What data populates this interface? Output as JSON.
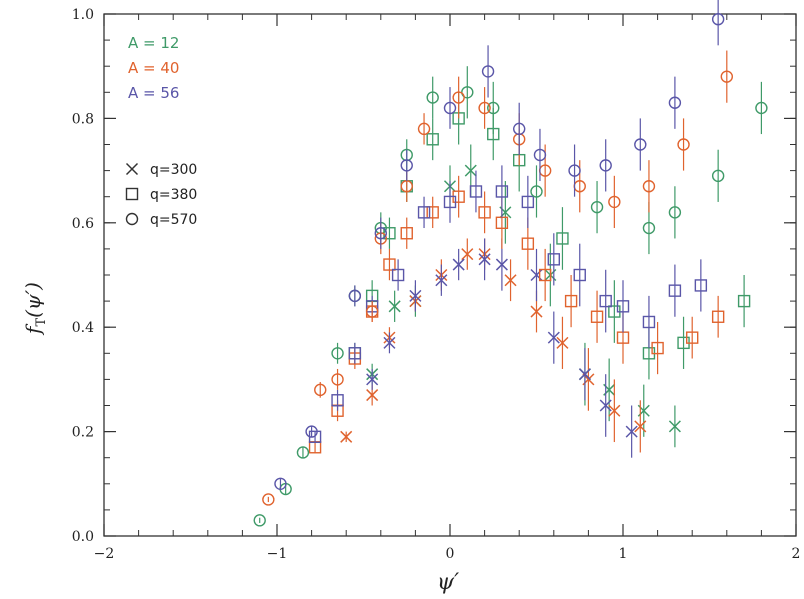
{
  "chart_data": {
    "type": "scatter",
    "title": "",
    "xlabel": "ψ′",
    "ylabel": "f_T(ψ′)",
    "ylabel_main": "f",
    "ylabel_sub": "T",
    "ylabel_tail": "(ψ′)",
    "xlim": [
      -2,
      2
    ],
    "ylim": [
      0.0,
      1.0
    ],
    "x_ticks": [
      {
        "value": -2,
        "label": "−2"
      },
      {
        "value": -1,
        "label": "−1"
      },
      {
        "value": 0,
        "label": "0"
      },
      {
        "value": 1,
        "label": "1"
      },
      {
        "value": 2,
        "label": "2"
      }
    ],
    "y_ticks": [
      {
        "value": 0.0,
        "label": "0.0"
      },
      {
        "value": 0.2,
        "label": "0.2"
      },
      {
        "value": 0.4,
        "label": "0.4"
      },
      {
        "value": 0.6,
        "label": "0.6"
      },
      {
        "value": 0.8,
        "label": "0.8"
      },
      {
        "value": 1.0,
        "label": "1.0"
      }
    ],
    "grid": false,
    "legend_position": "top-left",
    "nucleus_legend": [
      {
        "label": "A = 12",
        "color": "#3f9a68"
      },
      {
        "label": "A = 40",
        "color": "#e0632e"
      },
      {
        "label": "A = 56",
        "color": "#5a56a8"
      }
    ],
    "q_legend": [
      {
        "label": "q=300",
        "marker": "cross"
      },
      {
        "label": "q=380",
        "marker": "square"
      },
      {
        "label": "q=570",
        "marker": "circle"
      }
    ],
    "series": [
      {
        "name": "A = 12, q=300",
        "color": "#3f9a68",
        "marker": "cross",
        "points": [
          [
            -0.45,
            0.31,
            0.02
          ],
          [
            -0.32,
            0.44,
            0.03
          ],
          [
            -0.2,
            0.45,
            0.03
          ],
          [
            0.0,
            0.67,
            0.04
          ],
          [
            0.12,
            0.7,
            0.05
          ],
          [
            0.32,
            0.62,
            0.06
          ],
          [
            0.58,
            0.5,
            0.06
          ],
          [
            0.78,
            0.31,
            0.06
          ],
          [
            0.92,
            0.28,
            0.06
          ],
          [
            1.12,
            0.24,
            0.05
          ],
          [
            1.3,
            0.21,
            0.04
          ]
        ]
      },
      {
        "name": "A = 40, q=300",
        "color": "#e0632e",
        "marker": "cross",
        "points": [
          [
            -0.6,
            0.19,
            0.01
          ],
          [
            -0.45,
            0.27,
            0.02
          ],
          [
            -0.35,
            0.38,
            0.02
          ],
          [
            -0.2,
            0.45,
            0.02
          ],
          [
            -0.05,
            0.5,
            0.03
          ],
          [
            0.1,
            0.54,
            0.03
          ],
          [
            0.2,
            0.54,
            0.03
          ],
          [
            0.35,
            0.49,
            0.04
          ],
          [
            0.5,
            0.43,
            0.04
          ],
          [
            0.65,
            0.37,
            0.05
          ],
          [
            0.8,
            0.3,
            0.06
          ],
          [
            0.95,
            0.24,
            0.06
          ],
          [
            1.1,
            0.21,
            0.05
          ]
        ]
      },
      {
        "name": "A = 56, q=300",
        "color": "#5a56a8",
        "marker": "cross",
        "points": [
          [
            -0.45,
            0.3,
            0.02
          ],
          [
            -0.35,
            0.37,
            0.02
          ],
          [
            -0.2,
            0.46,
            0.03
          ],
          [
            -0.05,
            0.49,
            0.03
          ],
          [
            0.05,
            0.52,
            0.03
          ],
          [
            0.2,
            0.53,
            0.04
          ],
          [
            0.3,
            0.52,
            0.05
          ],
          [
            0.5,
            0.5,
            0.05
          ],
          [
            0.6,
            0.38,
            0.05
          ],
          [
            0.78,
            0.31,
            0.05
          ],
          [
            0.9,
            0.25,
            0.06
          ],
          [
            1.05,
            0.2,
            0.05
          ]
        ]
      },
      {
        "name": "A = 12, q=380",
        "color": "#3f9a68",
        "marker": "square",
        "points": [
          [
            -0.55,
            0.35,
            0.02
          ],
          [
            -0.45,
            0.46,
            0.03
          ],
          [
            -0.35,
            0.58,
            0.03
          ],
          [
            -0.25,
            0.67,
            0.03
          ],
          [
            -0.1,
            0.76,
            0.04
          ],
          [
            0.05,
            0.8,
            0.05
          ],
          [
            0.25,
            0.77,
            0.05
          ],
          [
            0.4,
            0.72,
            0.06
          ],
          [
            0.65,
            0.57,
            0.06
          ],
          [
            0.95,
            0.43,
            0.06
          ],
          [
            1.15,
            0.35,
            0.05
          ],
          [
            1.35,
            0.37,
            0.05
          ],
          [
            1.7,
            0.45,
            0.05
          ]
        ]
      },
      {
        "name": "A = 40, q=380",
        "color": "#e0632e",
        "marker": "square",
        "points": [
          [
            -0.78,
            0.17,
            0.01
          ],
          [
            -0.65,
            0.24,
            0.02
          ],
          [
            -0.55,
            0.34,
            0.02
          ],
          [
            -0.45,
            0.43,
            0.02
          ],
          [
            -0.35,
            0.52,
            0.03
          ],
          [
            -0.25,
            0.58,
            0.03
          ],
          [
            -0.1,
            0.62,
            0.03
          ],
          [
            0.05,
            0.65,
            0.04
          ],
          [
            0.2,
            0.62,
            0.04
          ],
          [
            0.3,
            0.6,
            0.05
          ],
          [
            0.45,
            0.56,
            0.05
          ],
          [
            0.55,
            0.5,
            0.05
          ],
          [
            0.7,
            0.45,
            0.05
          ],
          [
            0.85,
            0.42,
            0.05
          ],
          [
            1.0,
            0.38,
            0.05
          ],
          [
            1.2,
            0.36,
            0.05
          ],
          [
            1.4,
            0.38,
            0.04
          ],
          [
            1.55,
            0.42,
            0.04
          ]
        ]
      },
      {
        "name": "A = 56, q=380",
        "color": "#5a56a8",
        "marker": "square",
        "points": [
          [
            -0.78,
            0.19,
            0.01
          ],
          [
            -0.65,
            0.26,
            0.02
          ],
          [
            -0.55,
            0.35,
            0.02
          ],
          [
            -0.45,
            0.44,
            0.02
          ],
          [
            -0.3,
            0.5,
            0.03
          ],
          [
            -0.15,
            0.62,
            0.03
          ],
          [
            0.0,
            0.64,
            0.04
          ],
          [
            0.15,
            0.66,
            0.04
          ],
          [
            0.3,
            0.66,
            0.05
          ],
          [
            0.45,
            0.64,
            0.05
          ],
          [
            0.6,
            0.53,
            0.05
          ],
          [
            0.75,
            0.5,
            0.06
          ],
          [
            0.9,
            0.45,
            0.06
          ],
          [
            1.0,
            0.44,
            0.05
          ],
          [
            1.15,
            0.41,
            0.05
          ],
          [
            1.3,
            0.47,
            0.05
          ],
          [
            1.45,
            0.48,
            0.05
          ]
        ]
      },
      {
        "name": "A = 12, q=570",
        "color": "#3f9a68",
        "marker": "circle",
        "points": [
          [
            -1.1,
            0.03,
            0.005
          ],
          [
            -0.95,
            0.09,
            0.01
          ],
          [
            -0.85,
            0.16,
            0.01
          ],
          [
            -0.65,
            0.35,
            0.02
          ],
          [
            -0.55,
            0.46,
            0.02
          ],
          [
            -0.4,
            0.59,
            0.03
          ],
          [
            -0.25,
            0.73,
            0.03
          ],
          [
            -0.1,
            0.84,
            0.04
          ],
          [
            0.1,
            0.85,
            0.05
          ],
          [
            0.25,
            0.82,
            0.05
          ],
          [
            0.5,
            0.66,
            0.05
          ],
          [
            0.85,
            0.63,
            0.05
          ],
          [
            1.15,
            0.59,
            0.05
          ],
          [
            1.3,
            0.62,
            0.05
          ],
          [
            1.55,
            0.69,
            0.05
          ],
          [
            1.8,
            0.82,
            0.05
          ]
        ]
      },
      {
        "name": "A = 40, q=570",
        "color": "#e0632e",
        "marker": "circle",
        "points": [
          [
            -1.05,
            0.07,
            0.005
          ],
          [
            -0.75,
            0.28,
            0.015
          ],
          [
            -0.65,
            0.3,
            0.02
          ],
          [
            -0.45,
            0.43,
            0.02
          ],
          [
            -0.4,
            0.57,
            0.03
          ],
          [
            -0.25,
            0.67,
            0.03
          ],
          [
            -0.15,
            0.78,
            0.03
          ],
          [
            0.05,
            0.84,
            0.04
          ],
          [
            0.2,
            0.82,
            0.04
          ],
          [
            0.4,
            0.76,
            0.05
          ],
          [
            0.55,
            0.7,
            0.05
          ],
          [
            0.75,
            0.67,
            0.05
          ],
          [
            0.95,
            0.64,
            0.05
          ],
          [
            1.15,
            0.67,
            0.05
          ],
          [
            1.35,
            0.75,
            0.05
          ],
          [
            1.6,
            0.88,
            0.05
          ]
        ]
      },
      {
        "name": "A = 56, q=570",
        "color": "#5a56a8",
        "marker": "circle",
        "points": [
          [
            -0.98,
            0.1,
            0.01
          ],
          [
            -0.8,
            0.2,
            0.01
          ],
          [
            -0.55,
            0.46,
            0.02
          ],
          [
            -0.4,
            0.58,
            0.03
          ],
          [
            -0.25,
            0.71,
            0.03
          ],
          [
            0.0,
            0.82,
            0.04
          ],
          [
            0.22,
            0.89,
            0.05
          ],
          [
            0.4,
            0.78,
            0.05
          ],
          [
            0.52,
            0.73,
            0.05
          ],
          [
            0.72,
            0.7,
            0.05
          ],
          [
            0.9,
            0.71,
            0.05
          ],
          [
            1.1,
            0.75,
            0.05
          ],
          [
            1.3,
            0.83,
            0.05
          ],
          [
            1.55,
            0.99,
            0.05
          ]
        ]
      }
    ]
  }
}
